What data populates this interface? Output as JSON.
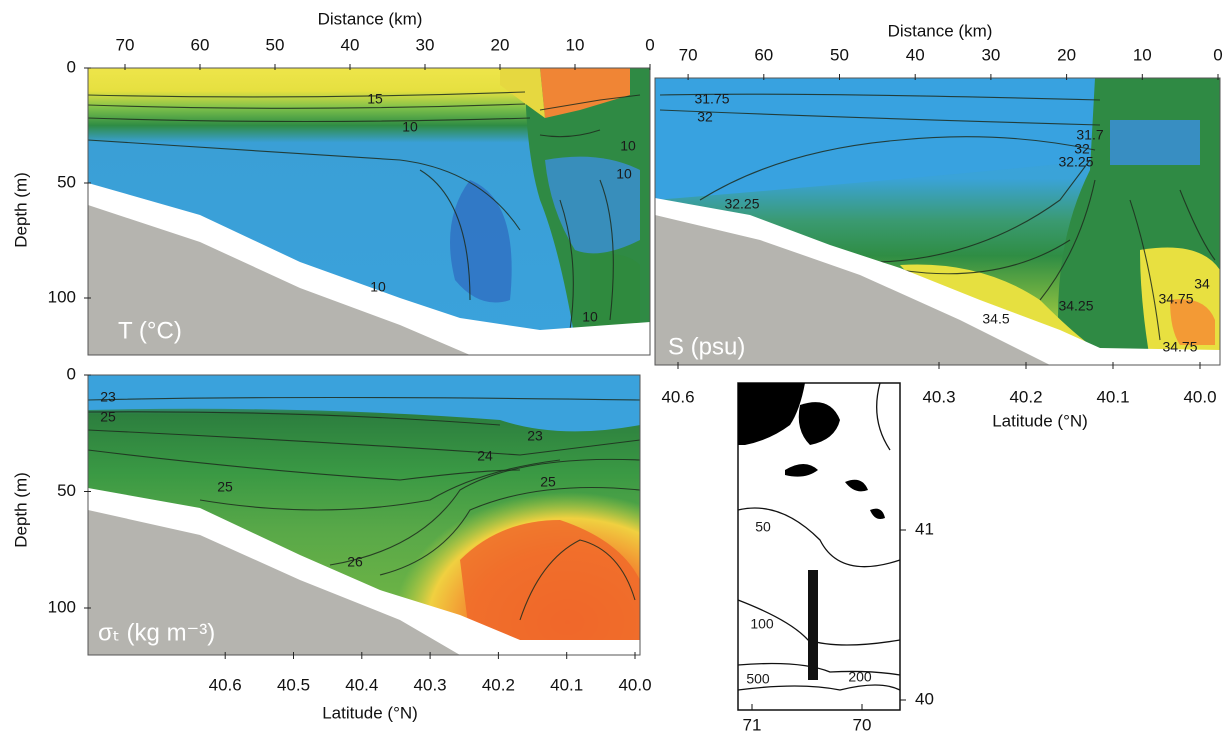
{
  "panels": [
    {
      "top_axis_title": "Distance (km)",
      "top_ticks": [
        70,
        60,
        50,
        40,
        30,
        20,
        10,
        0
      ],
      "depth_title": "Depth (m)",
      "depth_ticks": [
        0,
        50,
        100
      ],
      "label": "T (°C)",
      "contour_labels": [
        "15",
        "10",
        "10",
        "10",
        "10",
        "10"
      ]
    },
    {
      "top_axis_title": "Distance (km)",
      "top_ticks": [
        70,
        60,
        50,
        40,
        30,
        20,
        10,
        0
      ],
      "label": "S (psu)",
      "contour_labels": [
        "31.75",
        "32",
        "31.7",
        "32",
        "32.25",
        "32.25",
        "34",
        "34.25",
        "34.5",
        "34.75",
        "34.75"
      ],
      "latitude_ticks": [
        40.6,
        40.3,
        40.2,
        40.1,
        {
          "value": 40,
          "label": "40.0"
        }
      ],
      "latitude_title": "Latitude (°N)"
    },
    {
      "depth_title": "Depth (m)",
      "depth_ticks": [
        0,
        50,
        100
      ],
      "label": "σₜ (kg m⁻³)",
      "contour_labels": [
        "23",
        "25",
        "23",
        "24",
        "25",
        "25",
        "26"
      ],
      "latitude_ticks": [
        40.6,
        40.5,
        40.4,
        40.3,
        40.2,
        40.1,
        {
          "value": 40,
          "label": "40.0"
        }
      ],
      "latitude_title": "Latitude (°N)"
    }
  ],
  "map": {
    "isobath_labels": [
      "50",
      "100",
      "500",
      "200"
    ],
    "latitude_ticks": [
      41,
      40
    ],
    "longitude_ticks": [
      71,
      70
    ]
  }
}
